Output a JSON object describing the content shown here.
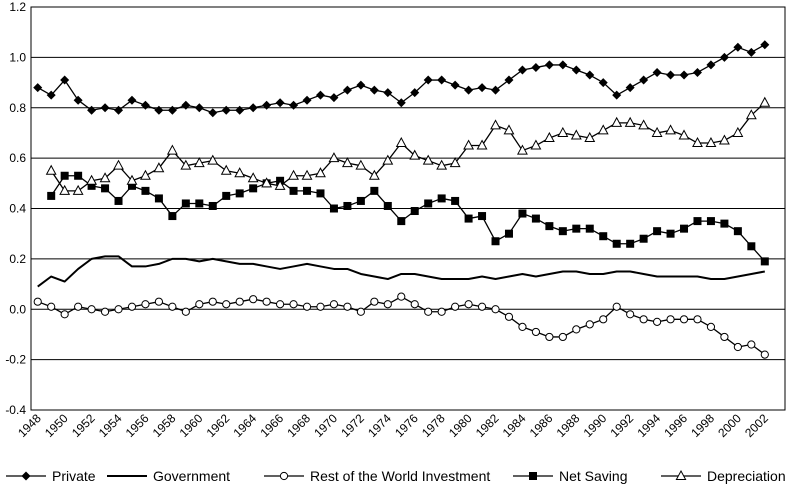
{
  "chart_data": {
    "type": "line",
    "title": "",
    "xlabel": "",
    "ylabel": "",
    "ylim": [
      -0.4,
      1.2
    ],
    "yticks": [
      "1.2",
      "1.0",
      "0.8",
      "0.6",
      "0.4",
      "0.2",
      "0.0",
      "-0.2",
      "-0.4"
    ],
    "xtick_labels": [
      "1948",
      "1950",
      "1952",
      "1954",
      "1956",
      "1958",
      "1960",
      "1962",
      "1964",
      "1966",
      "1968",
      "1970",
      "1972",
      "1974",
      "1976",
      "1978",
      "1980",
      "1982",
      "1984",
      "1986",
      "1988",
      "1990",
      "1992",
      "1994",
      "1996",
      "1998",
      "2000",
      "2002"
    ],
    "grid": "horizontal",
    "legend_position": "bottom",
    "series": [
      {
        "name": "Private",
        "marker": "diamond-filled",
        "start_year": 1948,
        "values": [
          0.88,
          0.85,
          0.91,
          0.83,
          0.79,
          0.8,
          0.79,
          0.83,
          0.81,
          0.79,
          0.79,
          0.81,
          0.8,
          0.78,
          0.79,
          0.79,
          0.8,
          0.81,
          0.82,
          0.81,
          0.83,
          0.85,
          0.84,
          0.87,
          0.89,
          0.87,
          0.86,
          0.82,
          0.86,
          0.91,
          0.91,
          0.89,
          0.87,
          0.88,
          0.87,
          0.91,
          0.95,
          0.96,
          0.97,
          0.97,
          0.95,
          0.93,
          0.9,
          0.85,
          0.88,
          0.91,
          0.94,
          0.93,
          0.93,
          0.94,
          0.97,
          1.0,
          1.04,
          1.02,
          1.05
        ]
      },
      {
        "name": "Government",
        "marker": "none",
        "start_year": 1948,
        "values": [
          0.09,
          0.13,
          0.11,
          0.16,
          0.2,
          0.21,
          0.21,
          0.17,
          0.17,
          0.18,
          0.2,
          0.2,
          0.19,
          0.2,
          0.19,
          0.18,
          0.18,
          0.17,
          0.16,
          0.17,
          0.18,
          0.17,
          0.16,
          0.16,
          0.14,
          0.13,
          0.12,
          0.14,
          0.14,
          0.13,
          0.12,
          0.12,
          0.12,
          0.13,
          0.12,
          0.13,
          0.14,
          0.13,
          0.14,
          0.15,
          0.15,
          0.14,
          0.14,
          0.15,
          0.15,
          0.14,
          0.13,
          0.13,
          0.13,
          0.13,
          0.12,
          0.12,
          0.13,
          0.14,
          0.15
        ]
      },
      {
        "name": "Rest of the World Investment",
        "marker": "circle-open",
        "start_year": 1948,
        "values": [
          0.03,
          0.01,
          -0.02,
          0.01,
          0.0,
          -0.01,
          0.0,
          0.01,
          0.02,
          0.03,
          0.01,
          -0.01,
          0.02,
          0.03,
          0.02,
          0.03,
          0.04,
          0.03,
          0.02,
          0.02,
          0.01,
          0.01,
          0.02,
          0.01,
          -0.01,
          0.03,
          0.02,
          0.05,
          0.02,
          -0.01,
          -0.01,
          0.01,
          0.02,
          0.01,
          0.0,
          -0.03,
          -0.07,
          -0.09,
          -0.11,
          -0.11,
          -0.08,
          -0.06,
          -0.04,
          0.01,
          -0.02,
          -0.04,
          -0.05,
          -0.04,
          -0.04,
          -0.04,
          -0.07,
          -0.11,
          -0.15,
          -0.14,
          -0.18
        ]
      },
      {
        "name": "Net Saving",
        "marker": "square-filled",
        "start_year": 1949,
        "values": [
          0.45,
          0.53,
          0.53,
          0.49,
          0.48,
          0.43,
          0.49,
          0.47,
          0.44,
          0.37,
          0.42,
          0.42,
          0.41,
          0.45,
          0.46,
          0.48,
          0.5,
          0.51,
          0.47,
          0.47,
          0.46,
          0.4,
          0.41,
          0.43,
          0.47,
          0.41,
          0.35,
          0.39,
          0.42,
          0.44,
          0.43,
          0.36,
          0.37,
          0.27,
          0.3,
          0.38,
          0.36,
          0.33,
          0.31,
          0.32,
          0.32,
          0.29,
          0.26,
          0.26,
          0.28,
          0.31,
          0.3,
          0.32,
          0.35,
          0.35,
          0.34,
          0.31,
          0.25,
          0.19
        ]
      },
      {
        "name": "Depreciation",
        "marker": "triangle-open",
        "start_year": 1949,
        "values": [
          0.55,
          0.47,
          0.47,
          0.51,
          0.52,
          0.57,
          0.51,
          0.53,
          0.56,
          0.63,
          0.57,
          0.58,
          0.59,
          0.55,
          0.54,
          0.52,
          0.5,
          0.49,
          0.53,
          0.53,
          0.54,
          0.6,
          0.58,
          0.57,
          0.53,
          0.59,
          0.66,
          0.61,
          0.59,
          0.57,
          0.58,
          0.65,
          0.65,
          0.73,
          0.71,
          0.63,
          0.65,
          0.68,
          0.7,
          0.69,
          0.68,
          0.71,
          0.74,
          0.74,
          0.73,
          0.7,
          0.71,
          0.69,
          0.66,
          0.66,
          0.67,
          0.7,
          0.77,
          0.82
        ]
      }
    ]
  }
}
